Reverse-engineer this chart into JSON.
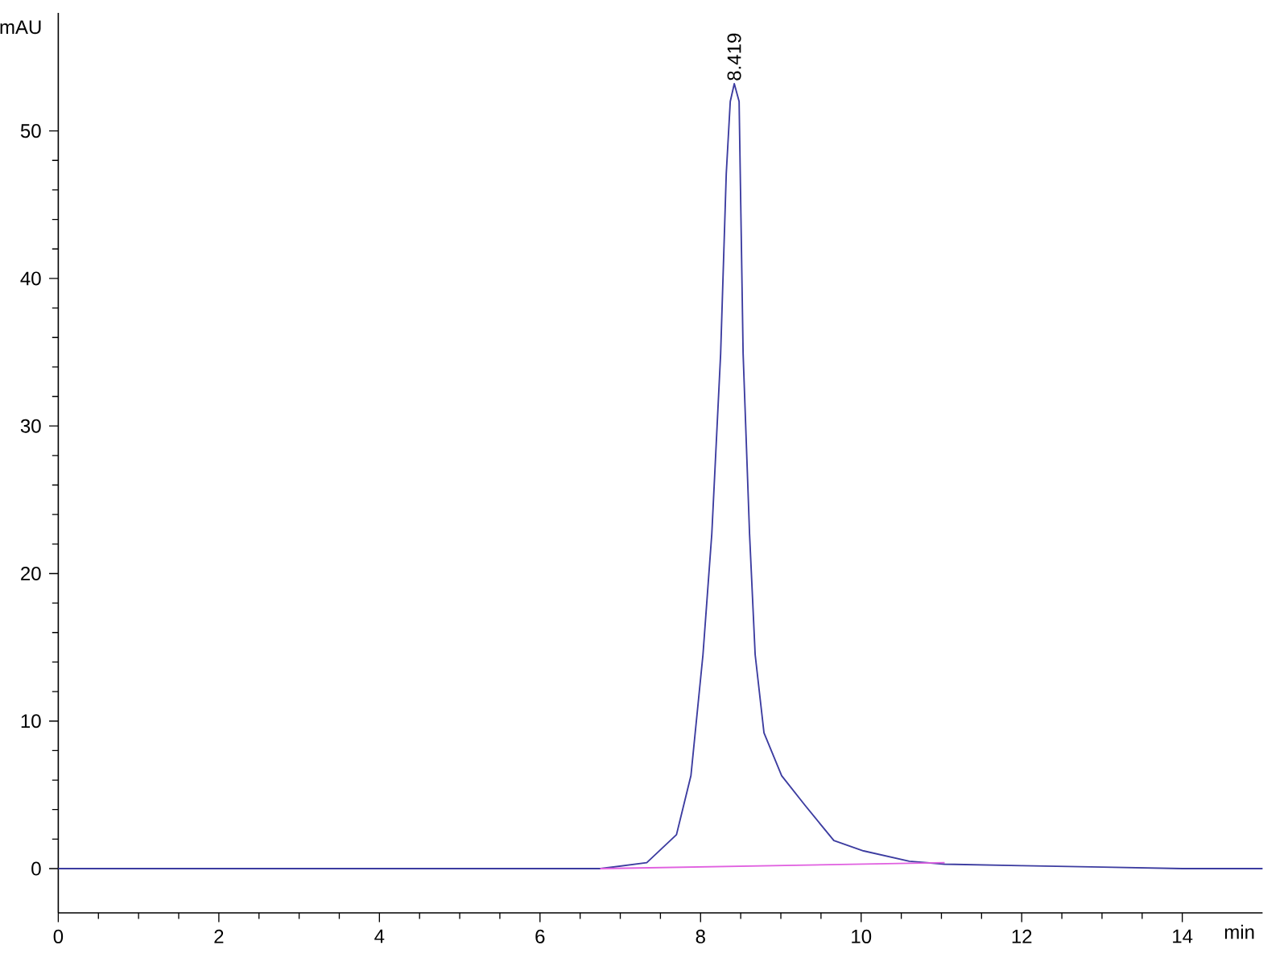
{
  "chart_data": {
    "type": "line",
    "xlabel": "min",
    "ylabel": "mAU",
    "xlim": [
      0,
      15
    ],
    "ylim": [
      -3,
      58
    ],
    "xticks": [
      0,
      2,
      4,
      6,
      8,
      10,
      12,
      14
    ],
    "yticks": [
      0,
      10,
      20,
      30,
      40,
      50
    ],
    "annotations": [
      {
        "text": "8.419",
        "x": 8.419,
        "y": 53.2
      }
    ],
    "series": [
      {
        "color": "#3c3ca0",
        "x": [
          0,
          2,
          4,
          6,
          6.75,
          7.33,
          7.7,
          7.88,
          8.03,
          8.14,
          8.25,
          8.32,
          8.37,
          8.42,
          8.48,
          8.53,
          8.61,
          8.68,
          8.79,
          9.01,
          9.3,
          9.66,
          10.03,
          10.6,
          11.04,
          12,
          13,
          14,
          15
        ],
        "values": [
          0,
          0,
          0,
          0,
          0,
          0.4,
          2.3,
          6.3,
          14.5,
          22.7,
          34.9,
          47.1,
          52.0,
          53.2,
          52.0,
          34.9,
          22.7,
          14.5,
          9.2,
          6.3,
          4.3,
          1.9,
          1.2,
          0.5,
          0.3,
          0.2,
          0.1,
          0,
          0
        ]
      },
      {
        "color": "#e060e0",
        "x": [
          6.75,
          11.04
        ],
        "values": [
          0,
          0.4
        ]
      }
    ]
  }
}
